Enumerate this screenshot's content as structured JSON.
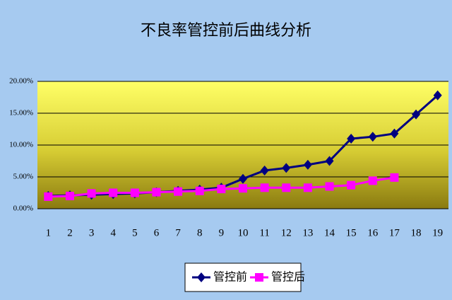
{
  "chart_data": {
    "type": "line",
    "title": "不良率管控前后曲线分析",
    "categories": [
      "1",
      "2",
      "3",
      "4",
      "5",
      "6",
      "7",
      "8",
      "9",
      "10",
      "11",
      "12",
      "13",
      "14",
      "15",
      "16",
      "17",
      "18",
      "19"
    ],
    "series": [
      {
        "name": "管控前",
        "color": "#000080",
        "values": [
          2.0,
          2.1,
          2.2,
          2.3,
          2.4,
          2.6,
          2.8,
          3.0,
          3.3,
          4.7,
          6.0,
          6.4,
          6.9,
          7.5,
          11.0,
          11.3,
          11.8,
          14.8,
          17.8
        ]
      },
      {
        "name": "管控后",
        "color": "#ff00ff",
        "values": [
          1.9,
          2.0,
          2.4,
          2.5,
          2.5,
          2.6,
          2.7,
          2.8,
          3.1,
          3.2,
          3.3,
          3.3,
          3.3,
          3.5,
          3.7,
          4.4,
          4.9,
          null,
          null
        ]
      }
    ],
    "ylim": [
      0,
      20
    ],
    "yticks": [
      {
        "value": 0,
        "label": "0.00%"
      },
      {
        "value": 5,
        "label": "5.00%"
      },
      {
        "value": 10,
        "label": "10.00%"
      },
      {
        "value": 15,
        "label": "15.00%"
      },
      {
        "value": 20,
        "label": "20.00%"
      }
    ],
    "grid": true,
    "legend": "bottom"
  }
}
